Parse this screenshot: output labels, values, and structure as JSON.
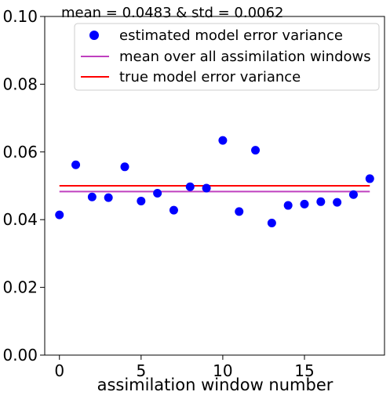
{
  "chart_data": {
    "type": "scatter",
    "annotation": "mean = 0.0483 & std = 0.0062",
    "xlabel": "assimilation window number",
    "ylabel": "",
    "xlim": [
      -0.9,
      19.9
    ],
    "ylim": [
      0,
      0.1
    ],
    "x_ticks": [
      0,
      5,
      10,
      15
    ],
    "x_tick_labels": [
      "0",
      "5",
      "10",
      "15"
    ],
    "y_ticks": [
      0,
      0.02,
      0.04,
      0.06,
      0.08,
      0.1
    ],
    "y_tick_labels": [
      "0.00",
      "0.02",
      "0.04",
      "0.06",
      "0.08",
      "0.10"
    ],
    "grid": false,
    "legend_position": "top-right",
    "series": [
      {
        "name": "estimated model error variance",
        "kind": "scatter",
        "color": "#0000ff",
        "x": [
          0,
          1,
          2,
          3,
          4,
          5,
          6,
          7,
          8,
          9,
          10,
          11,
          12,
          13,
          14,
          15,
          16,
          17,
          18,
          19
        ],
        "y": [
          0.0414,
          0.0562,
          0.0467,
          0.0465,
          0.0556,
          0.0455,
          0.0478,
          0.0428,
          0.0497,
          0.0493,
          0.0634,
          0.0424,
          0.0605,
          0.039,
          0.0442,
          0.0446,
          0.0453,
          0.0451,
          0.0474,
          0.0521
        ]
      },
      {
        "name": "mean over all assimilation windows",
        "kind": "line",
        "color": "#bf40bf",
        "x": [
          0,
          19
        ],
        "y": [
          0.0483,
          0.0483
        ]
      },
      {
        "name": "true model error variance",
        "kind": "line",
        "color": "#ff0000",
        "x": [
          0,
          19
        ],
        "y": [
          0.05,
          0.05
        ]
      }
    ]
  }
}
